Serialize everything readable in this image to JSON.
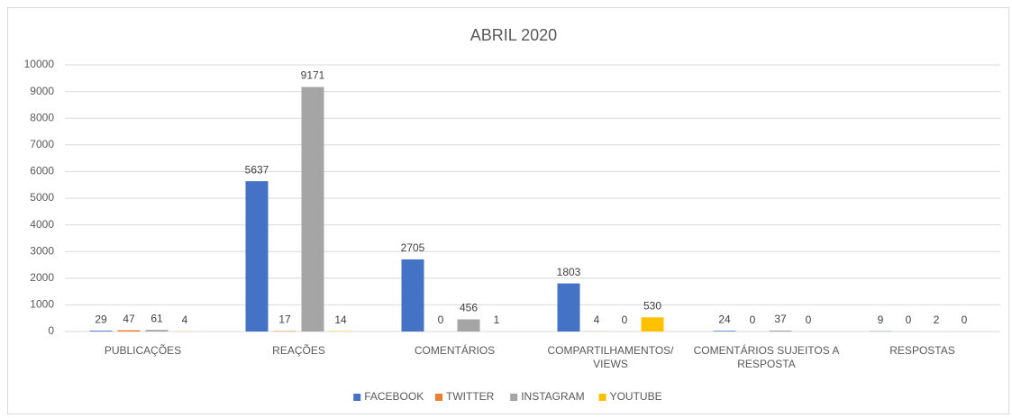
{
  "chart_data": {
    "type": "bar",
    "title": "ABRIL 2020",
    "categories": [
      "PUBLICAÇÕES",
      "REAÇÕES",
      "COMENTÁRIOS",
      "COMPARTILHAMENTOS/ VIEWS",
      "COMENTÁRIOS SUJEITOS A RESPOSTA",
      "RESPOSTAS"
    ],
    "series": [
      {
        "name": "FACEBOOK",
        "color": "#4472c4",
        "values": [
          29,
          5637,
          2705,
          1803,
          24,
          9
        ]
      },
      {
        "name": "TWITTER",
        "color": "#ed7d31",
        "values": [
          47,
          17,
          0,
          4,
          0,
          0
        ]
      },
      {
        "name": "INSTAGRAM",
        "color": "#a5a5a5",
        "values": [
          61,
          9171,
          456,
          0,
          37,
          2
        ]
      },
      {
        "name": "YOUTUBE",
        "color": "#ffc000",
        "values": [
          4,
          14,
          1,
          530,
          0,
          0
        ]
      }
    ],
    "ylim": [
      0,
      10000
    ],
    "yticks": [
      0,
      1000,
      2000,
      3000,
      4000,
      5000,
      6000,
      7000,
      8000,
      9000,
      10000
    ],
    "grid": true,
    "legend": "bottom"
  }
}
